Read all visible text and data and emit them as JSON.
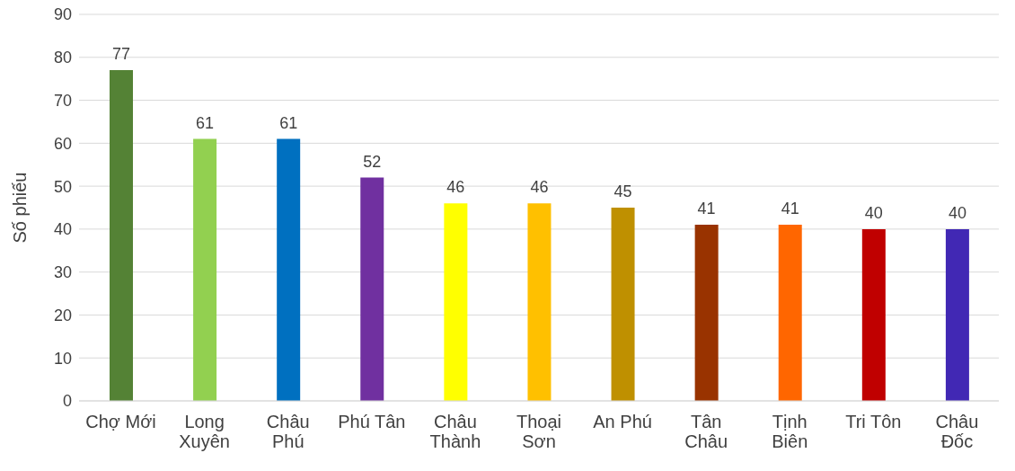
{
  "chart_data": {
    "type": "bar",
    "ylabel": "Số phiếu",
    "categories": [
      "Chợ Mới",
      "Long Xuyên",
      "Châu Phú",
      "Phú Tân",
      "Châu Thành",
      "Thoại Sơn",
      "An Phú",
      "Tân Châu",
      "Tịnh Biên",
      "Tri Tôn",
      "Châu Đốc"
    ],
    "values": [
      77,
      61,
      61,
      52,
      46,
      46,
      45,
      41,
      41,
      40,
      40
    ],
    "colors": [
      "#548235",
      "#92d050",
      "#0070c0",
      "#7030a0",
      "#ffff00",
      "#ffc000",
      "#bf9000",
      "#993300",
      "#ff6600",
      "#c00000",
      "#4128b4"
    ],
    "ylim": [
      0,
      90
    ],
    "yticks": [
      0,
      10,
      20,
      30,
      40,
      50,
      60,
      70,
      80,
      90
    ],
    "grid": "y",
    "data_labels": true
  }
}
